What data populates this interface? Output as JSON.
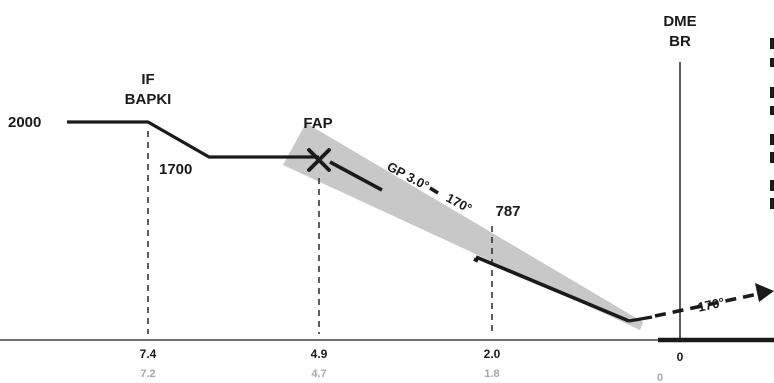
{
  "profile": {
    "altitudes": {
      "start": "2000",
      "intermediate": "1700",
      "glidepath_check": "787"
    },
    "fixes": {
      "if_label": "IF",
      "if_name": "BAPKI",
      "fap_label": "FAP",
      "dme_label": "DME",
      "dme_name": "BR"
    },
    "glidepath": {
      "label": "GP 3.0°",
      "course": "170°"
    },
    "missed_approach": {
      "course": "170°"
    },
    "distances": {
      "primary": [
        "7.4",
        "4.9",
        "2.0",
        "0"
      ],
      "secondary": [
        "7.2",
        "4.7",
        "1.8",
        "0"
      ]
    },
    "colors": {
      "line": "#1a1a1a",
      "shade": "#c8c8c8",
      "secondary_text": "#a8a8a8"
    }
  }
}
